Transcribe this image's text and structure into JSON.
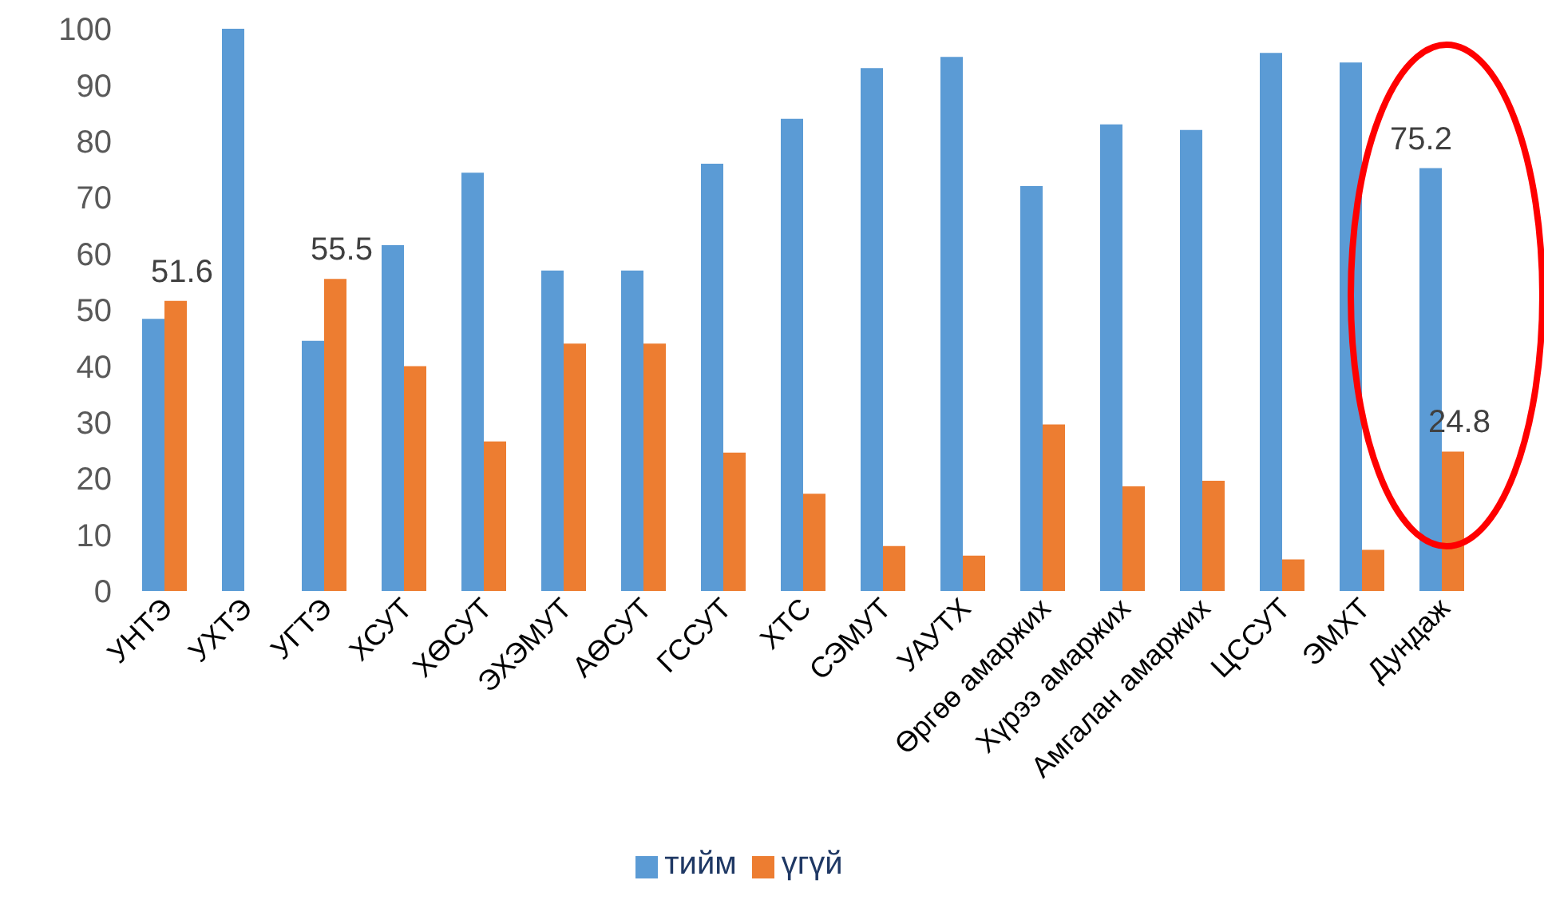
{
  "chart_data": {
    "type": "bar",
    "categories": [
      "УНТЭ",
      "УХТЭ",
      "УГТЭ",
      "ХСУТ",
      "ХӨСУТ",
      "ЭХЭМУТ",
      "АӨСУТ",
      "ГССУТ",
      "ХТС",
      "СЭМУТ",
      "УАУТХ",
      "Өргөө амаржих",
      "Хүрээ амаржих",
      "Амгалан амаржих",
      "ЦССУТ",
      "ЭМХТ",
      "Дундаж"
    ],
    "series": [
      {
        "name": "тийм",
        "color": "#5b9bd5",
        "values": [
          48.4,
          100,
          44.5,
          61.5,
          74.4,
          57,
          57,
          76,
          84,
          93,
          95,
          72,
          83,
          82,
          95.7,
          94,
          75.2
        ],
        "value_labels": [
          null,
          null,
          null,
          null,
          null,
          null,
          null,
          null,
          null,
          null,
          null,
          null,
          null,
          null,
          null,
          null,
          "75.2"
        ]
      },
      {
        "name": "үгүй",
        "color": "#ed7d31",
        "values": [
          51.6,
          0,
          55.5,
          40,
          26.6,
          44,
          44,
          24.6,
          17.3,
          8,
          6.3,
          29.6,
          18.6,
          19.6,
          5.6,
          7.3,
          24.8
        ],
        "value_labels": [
          "51.6",
          null,
          "55.5",
          null,
          null,
          null,
          null,
          null,
          null,
          null,
          null,
          null,
          null,
          null,
          null,
          null,
          "24.8"
        ]
      }
    ],
    "ylim": [
      0,
      100
    ],
    "yticks": [
      0,
      10,
      20,
      30,
      40,
      50,
      60,
      70,
      80,
      90,
      100
    ],
    "grid": false,
    "legend": "bottom"
  }
}
